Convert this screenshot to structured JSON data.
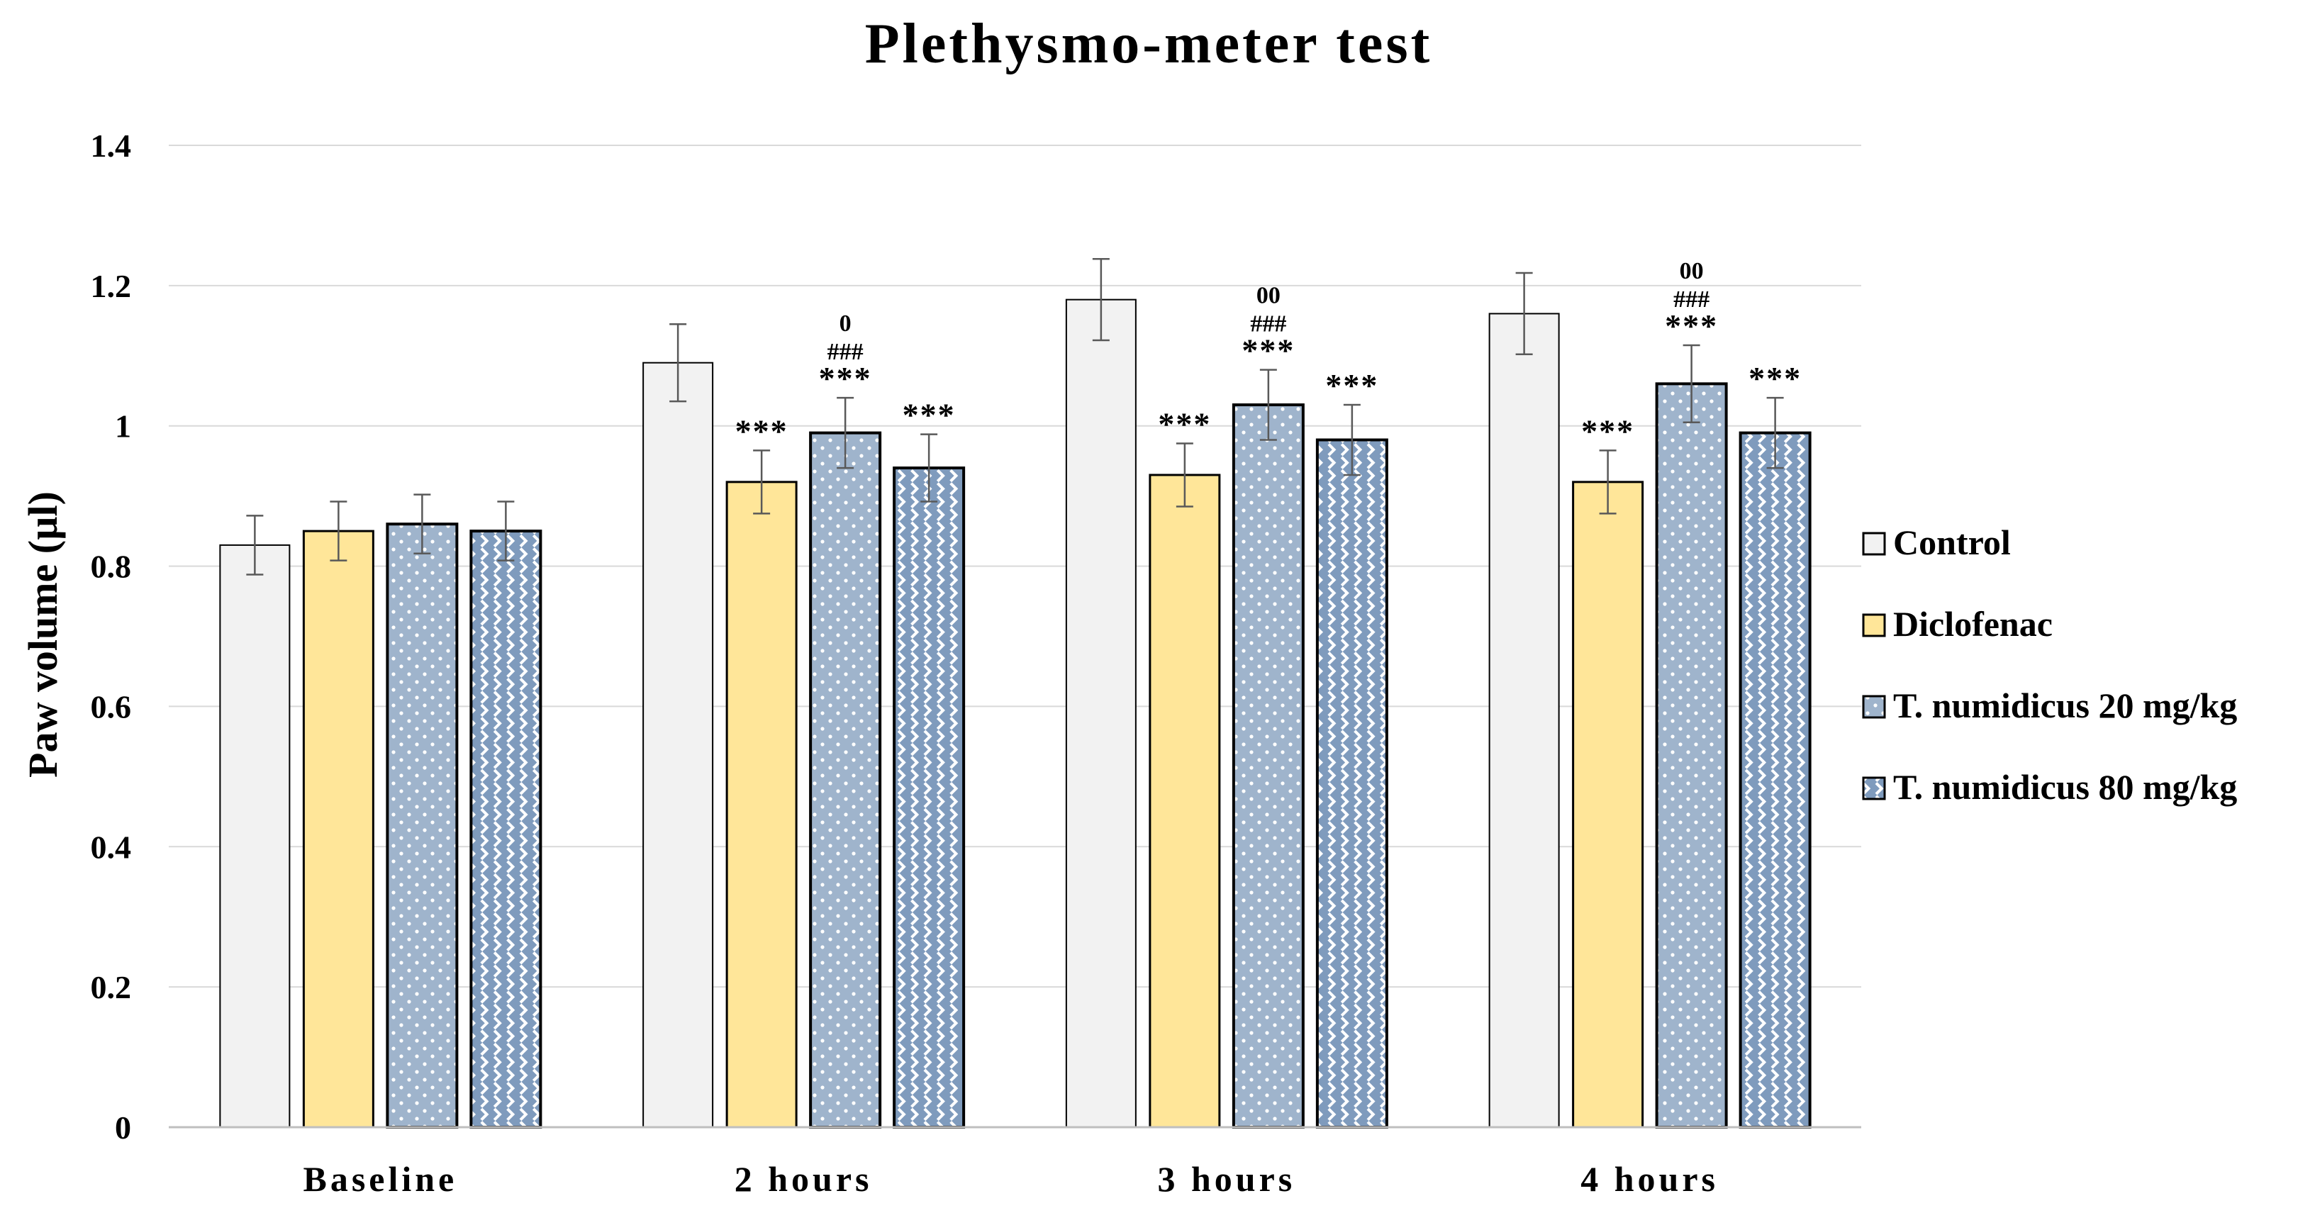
{
  "chart_data": {
    "type": "bar",
    "title": "Plethysmo-meter test",
    "xlabel": "",
    "ylabel": "Paw volume (µl)",
    "ylim": [
      0,
      1.4
    ],
    "yticks": [
      "0",
      "0.2",
      "0.4",
      "0.6",
      "0.8",
      "1",
      "1.2",
      "1.4"
    ],
    "ytick_values": [
      0,
      0.2,
      0.4,
      0.6,
      0.8,
      1.0,
      1.2,
      1.4
    ],
    "grid": true,
    "legend_position": "right",
    "categories": [
      "Baseline",
      "2 hours",
      "3 hours",
      "4 hours"
    ],
    "series": [
      {
        "name": "Control",
        "color": "#f2f2f2",
        "pattern": "none",
        "values": [
          0.83,
          1.09,
          1.18,
          1.16
        ],
        "errors": [
          0.042,
          0.055,
          0.058,
          0.058
        ],
        "annotations": [
          [],
          [],
          [],
          []
        ]
      },
      {
        "name": "Diclofenac",
        "color": "#ffe699",
        "pattern": "none",
        "values": [
          0.85,
          0.92,
          0.93,
          0.92
        ],
        "errors": [
          0.042,
          0.045,
          0.045,
          0.045
        ],
        "annotations": [
          [],
          [
            "***"
          ],
          [
            "***"
          ],
          [
            "***"
          ]
        ]
      },
      {
        "name": "T. numidicus 20 mg/kg",
        "color": "#9fb4cc",
        "pattern": "dots",
        "values": [
          0.86,
          0.99,
          1.03,
          1.06
        ],
        "errors": [
          0.042,
          0.05,
          0.05,
          0.055
        ],
        "annotations": [
          [],
          [
            "***",
            "###",
            "0"
          ],
          [
            "***",
            "###",
            "00"
          ],
          [
            "***",
            "###",
            "00"
          ]
        ]
      },
      {
        "name": "T. numidicus 80 mg/kg",
        "color": "#7f9bbd",
        "pattern": "lattice",
        "values": [
          0.85,
          0.94,
          0.98,
          0.99
        ],
        "errors": [
          0.042,
          0.048,
          0.05,
          0.05
        ],
        "annotations": [
          [],
          [
            "***"
          ],
          [
            "***"
          ],
          [
            "***"
          ]
        ]
      }
    ]
  }
}
